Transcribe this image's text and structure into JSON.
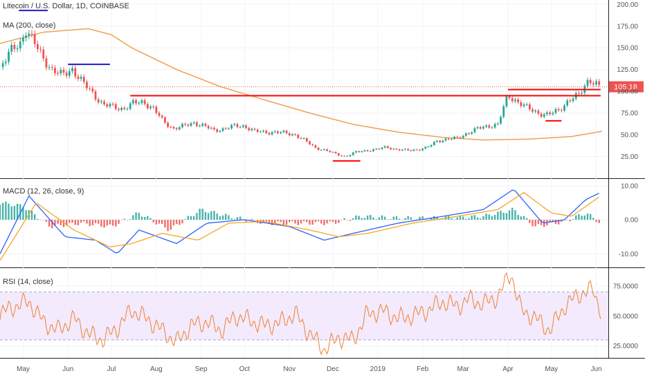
{
  "chart_data": {
    "type": "candlestick",
    "title": "Litecoin / U.S. Dollar, 1D, COINBASE",
    "last_price": "105.18",
    "colors": {
      "up": "#26a69a",
      "down": "#ef5350",
      "ma": "#f0a050",
      "macd": "#2962ff",
      "signal": "#f5a623",
      "rsi": "#f08030",
      "support": "#ff0000",
      "resistance_marks": "#1a1acc",
      "rsi_band": "#f3eafd"
    },
    "time_axis": {
      "ticks": [
        "May",
        "Jun",
        "Jul",
        "Aug",
        "Sep",
        "Oct",
        "Nov",
        "Dec",
        "2019",
        "Feb",
        "Mar",
        "Apr",
        "May",
        "Jun"
      ]
    },
    "price_panel": {
      "legend": [
        "Litecoin / U.S. Dollar, 1D, COINBASE",
        "MA (200, close)"
      ],
      "y_ticks": [
        "200.00",
        "175.00",
        "150.00",
        "125.00",
        "100.00",
        "75.00",
        "50.00",
        "25.00"
      ],
      "ylim": [
        0,
        205
      ],
      "close_series": [
        [
          "2018-04-15",
          128
        ],
        [
          "2018-04-22",
          145
        ],
        [
          "2018-04-29",
          155
        ],
        [
          "2018-05-03",
          172
        ],
        [
          "2018-05-07",
          160
        ],
        [
          "2018-05-14",
          140
        ],
        [
          "2018-05-21",
          125
        ],
        [
          "2018-05-28",
          118
        ],
        [
          "2018-06-04",
          126
        ],
        [
          "2018-06-11",
          110
        ],
        [
          "2018-06-18",
          98
        ],
        [
          "2018-06-25",
          85
        ],
        [
          "2018-07-02",
          82
        ],
        [
          "2018-07-09",
          80
        ],
        [
          "2018-07-16",
          86
        ],
        [
          "2018-07-23",
          88
        ],
        [
          "2018-07-30",
          80
        ],
        [
          "2018-08-06",
          65
        ],
        [
          "2018-08-13",
          57
        ],
        [
          "2018-08-20",
          60
        ],
        [
          "2018-08-27",
          64
        ],
        [
          "2018-09-03",
          60
        ],
        [
          "2018-09-10",
          55
        ],
        [
          "2018-09-17",
          57
        ],
        [
          "2018-09-24",
          60
        ],
        [
          "2018-10-01",
          60
        ],
        [
          "2018-10-08",
          54
        ],
        [
          "2018-10-15",
          53
        ],
        [
          "2018-10-22",
          53
        ],
        [
          "2018-10-29",
          52
        ],
        [
          "2018-11-05",
          50
        ],
        [
          "2018-11-12",
          43
        ],
        [
          "2018-11-19",
          35
        ],
        [
          "2018-11-26",
          32
        ],
        [
          "2018-12-03",
          28
        ],
        [
          "2018-12-10",
          25
        ],
        [
          "2018-12-17",
          30
        ],
        [
          "2018-12-24",
          32
        ],
        [
          "2018-12-31",
          33
        ],
        [
          "2019-01-07",
          36
        ],
        [
          "2019-01-14",
          33
        ],
        [
          "2019-01-21",
          32
        ],
        [
          "2019-01-28",
          33
        ],
        [
          "2019-02-04",
          35
        ],
        [
          "2019-02-11",
          43
        ],
        [
          "2019-02-18",
          45
        ],
        [
          "2019-02-25",
          46
        ],
        [
          "2019-03-04",
          52
        ],
        [
          "2019-03-11",
          57
        ],
        [
          "2019-03-18",
          60
        ],
        [
          "2019-03-25",
          62
        ],
        [
          "2019-04-01",
          95
        ],
        [
          "2019-04-08",
          88
        ],
        [
          "2019-04-15",
          80
        ],
        [
          "2019-04-22",
          75
        ],
        [
          "2019-04-29",
          73
        ],
        [
          "2019-05-06",
          78
        ],
        [
          "2019-05-13",
          90
        ],
        [
          "2019-05-20",
          95
        ],
        [
          "2019-05-27",
          115
        ],
        [
          "2019-06-03",
          105
        ]
      ],
      "ma200": [
        [
          "2018-04-15",
          155
        ],
        [
          "2018-05-15",
          168
        ],
        [
          "2018-06-15",
          172
        ],
        [
          "2018-07-01",
          165
        ],
        [
          "2018-07-15",
          150
        ],
        [
          "2018-08-15",
          125
        ],
        [
          "2018-09-15",
          105
        ],
        [
          "2018-10-15",
          90
        ],
        [
          "2018-11-15",
          75
        ],
        [
          "2018-12-15",
          62
        ],
        [
          "2019-01-15",
          53
        ],
        [
          "2019-02-15",
          47
        ],
        [
          "2019-03-15",
          44
        ],
        [
          "2019-04-15",
          45
        ],
        [
          "2019-05-15",
          48
        ],
        [
          "2019-06-05",
          54
        ]
      ],
      "support_lines": [
        {
          "from": [
            "2018-07-14",
            95
          ],
          "to": [
            "2019-06-04",
            95
          ]
        },
        {
          "from": [
            "2019-04-01",
            102
          ],
          "to": [
            "2019-06-04",
            102
          ]
        }
      ],
      "short_red_marks": [
        {
          "from": [
            "2018-12-01",
            20
          ],
          "to": [
            "2018-12-20",
            20
          ]
        },
        {
          "from": [
            "2019-04-27",
            66
          ],
          "to": [
            "2019-05-08",
            66
          ]
        }
      ],
      "short_blue_marks": [
        {
          "from": [
            "2018-04-28",
            193
          ],
          "to": [
            "2018-05-18",
            193
          ]
        },
        {
          "from": [
            "2018-06-01",
            131
          ],
          "to": [
            "2018-06-30",
            131
          ]
        }
      ]
    },
    "macd_panel": {
      "legend": "MACD (12, 26, close, 9)",
      "y_ticks": [
        "10.00",
        "0.00",
        "-10.00"
      ],
      "ylim": [
        -14,
        12
      ],
      "macd": [
        [
          "2018-04-15",
          -10
        ],
        [
          "2018-05-05",
          7
        ],
        [
          "2018-05-30",
          -5
        ],
        [
          "2018-06-20",
          -6
        ],
        [
          "2018-07-05",
          -10
        ],
        [
          "2018-07-20",
          -3
        ],
        [
          "2018-08-15",
          -7
        ],
        [
          "2018-09-05",
          -1
        ],
        [
          "2018-10-01",
          0
        ],
        [
          "2018-11-01",
          -2
        ],
        [
          "2018-11-25",
          -6
        ],
        [
          "2018-12-15",
          -4
        ],
        [
          "2019-01-15",
          -1
        ],
        [
          "2019-02-15",
          1
        ],
        [
          "2019-03-15",
          3
        ],
        [
          "2019-04-05",
          9
        ],
        [
          "2019-04-25",
          -1
        ],
        [
          "2019-05-10",
          0
        ],
        [
          "2019-05-25",
          6
        ],
        [
          "2019-06-04",
          8
        ]
      ],
      "signal": [
        [
          "2018-04-15",
          -12
        ],
        [
          "2018-05-10",
          5
        ],
        [
          "2018-06-05",
          -3
        ],
        [
          "2018-06-30",
          -8
        ],
        [
          "2018-07-15",
          -7
        ],
        [
          "2018-08-05",
          -4
        ],
        [
          "2018-08-30",
          -6
        ],
        [
          "2018-09-20",
          -1
        ],
        [
          "2018-10-15",
          -0.5
        ],
        [
          "2018-11-15",
          -3
        ],
        [
          "2018-12-05",
          -5
        ],
        [
          "2018-12-25",
          -4
        ],
        [
          "2019-01-25",
          -1
        ],
        [
          "2019-02-25",
          1
        ],
        [
          "2019-03-25",
          3
        ],
        [
          "2019-04-12",
          8
        ],
        [
          "2019-05-01",
          2
        ],
        [
          "2019-05-15",
          1
        ],
        [
          "2019-06-04",
          7
        ]
      ],
      "hist": [
        [
          "2018-04-15",
          5
        ],
        [
          "2018-05-01",
          4
        ],
        [
          "2018-05-20",
          -2
        ],
        [
          "2018-06-10",
          -1
        ],
        [
          "2018-07-01",
          -2
        ],
        [
          "2018-07-20",
          2
        ],
        [
          "2018-08-10",
          -3
        ],
        [
          "2018-09-01",
          3
        ],
        [
          "2018-09-20",
          1
        ],
        [
          "2018-10-15",
          -1
        ],
        [
          "2018-11-10",
          -1
        ],
        [
          "2018-11-30",
          -1
        ],
        [
          "2018-12-20",
          1
        ],
        [
          "2019-01-15",
          0.5
        ],
        [
          "2019-02-15",
          0.5
        ],
        [
          "2019-03-15",
          1
        ],
        [
          "2019-04-05",
          3
        ],
        [
          "2019-04-20",
          -2
        ],
        [
          "2019-05-10",
          -0.5
        ],
        [
          "2019-05-25",
          2
        ],
        [
          "2019-06-04",
          -1
        ]
      ]
    },
    "rsi_panel": {
      "legend": "RSI (14, close)",
      "y_ticks": [
        "75.0000",
        "50.0000",
        "25.0000"
      ],
      "ylim": [
        15,
        90
      ],
      "band": [
        30,
        70
      ],
      "rsi": [
        [
          "2018-04-15",
          52
        ],
        [
          "2018-04-25",
          58
        ],
        [
          "2018-05-05",
          62
        ],
        [
          "2018-05-15",
          45
        ],
        [
          "2018-05-25",
          38
        ],
        [
          "2018-06-05",
          48
        ],
        [
          "2018-06-15",
          35
        ],
        [
          "2018-06-25",
          30
        ],
        [
          "2018-07-05",
          40
        ],
        [
          "2018-07-15",
          55
        ],
        [
          "2018-07-25",
          48
        ],
        [
          "2018-08-05",
          38
        ],
        [
          "2018-08-15",
          28
        ],
        [
          "2018-08-25",
          42
        ],
        [
          "2018-09-05",
          45
        ],
        [
          "2018-09-15",
          38
        ],
        [
          "2018-09-25",
          50
        ],
        [
          "2018-10-05",
          46
        ],
        [
          "2018-10-15",
          42
        ],
        [
          "2018-10-25",
          44
        ],
        [
          "2018-11-05",
          52
        ],
        [
          "2018-11-15",
          35
        ],
        [
          "2018-11-25",
          22
        ],
        [
          "2018-12-05",
          32
        ],
        [
          "2018-12-15",
          30
        ],
        [
          "2018-12-25",
          52
        ],
        [
          "2019-01-05",
          54
        ],
        [
          "2019-01-15",
          48
        ],
        [
          "2019-01-25",
          50
        ],
        [
          "2019-02-05",
          55
        ],
        [
          "2019-02-15",
          62
        ],
        [
          "2019-02-25",
          58
        ],
        [
          "2019-03-05",
          64
        ],
        [
          "2019-03-15",
          60
        ],
        [
          "2019-03-25",
          66
        ],
        [
          "2019-04-03",
          86
        ],
        [
          "2019-04-10",
          55
        ],
        [
          "2019-04-20",
          48
        ],
        [
          "2019-04-30",
          38
        ],
        [
          "2019-05-10",
          58
        ],
        [
          "2019-05-20",
          68
        ],
        [
          "2019-05-30",
          72
        ],
        [
          "2019-06-04",
          55
        ]
      ]
    }
  }
}
